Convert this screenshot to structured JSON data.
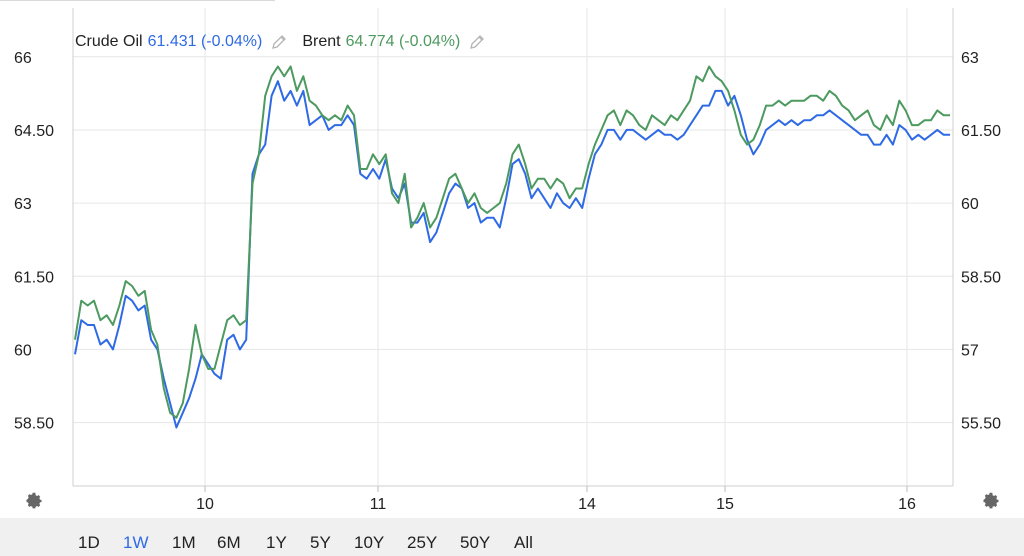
{
  "legend": {
    "crude": {
      "name": "Crude Oil",
      "value": "61.431 (-0.04%)"
    },
    "brent": {
      "name": "Brent",
      "value": "64.774 (-0.04%)"
    }
  },
  "colors": {
    "crude": "#2f6ae5",
    "brent": "#4c9a5f",
    "grid": "#e6e6e6",
    "axis": "#cfcfcf"
  },
  "icons": {
    "left_settings": "gear-icon",
    "right_settings": "gear-icon",
    "edit": "pencil-icon"
  },
  "range_buttons": [
    "1D",
    "1W",
    "1M",
    "6M",
    "1Y",
    "5Y",
    "10Y",
    "25Y",
    "50Y",
    "All"
  ],
  "active_range": "1W",
  "chart_data": {
    "type": "line",
    "x_tick_labels": [
      "10",
      "11",
      "14",
      "15",
      "16"
    ],
    "y_left_ticks": [
      "66",
      "64.50",
      "63",
      "61.50",
      "60",
      "58.50"
    ],
    "y_right_ticks": [
      "63",
      "61.50",
      "60",
      "58.50",
      "57",
      "55.50"
    ],
    "y_left_range": [
      57.2,
      67.0
    ],
    "y_right_range": [
      54.2,
      64.0
    ],
    "grid": true,
    "series": [
      {
        "name": "Crude Oil",
        "axis": "right",
        "values": [
          56.9,
          57.6,
          57.5,
          57.5,
          57.1,
          57.2,
          57.0,
          57.5,
          58.1,
          58.0,
          57.8,
          57.9,
          57.2,
          57.0,
          56.4,
          55.9,
          55.4,
          55.7,
          56.0,
          56.4,
          56.9,
          56.7,
          56.5,
          56.4,
          57.2,
          57.3,
          57.0,
          57.2,
          60.6,
          61.0,
          61.2,
          62.2,
          62.5,
          62.1,
          62.3,
          62.0,
          62.3,
          61.6,
          61.7,
          61.8,
          61.5,
          61.6,
          61.6,
          61.8,
          61.6,
          60.6,
          60.5,
          60.7,
          60.5,
          60.9,
          60.3,
          60.1,
          60.4,
          59.6,
          59.6,
          59.8,
          59.2,
          59.4,
          59.8,
          60.2,
          60.4,
          60.3,
          59.9,
          60.0,
          59.6,
          59.7,
          59.7,
          59.5,
          60.1,
          60.8,
          60.9,
          60.6,
          60.1,
          60.3,
          60.1,
          59.9,
          60.2,
          60.0,
          59.9,
          60.1,
          59.9,
          60.5,
          61.0,
          61.2,
          61.5,
          61.5,
          61.3,
          61.5,
          61.5,
          61.4,
          61.3,
          61.4,
          61.5,
          61.4,
          61.4,
          61.3,
          61.4,
          61.6,
          61.8,
          62.0,
          62.0,
          62.3,
          62.3,
          62.0,
          62.2,
          61.8,
          61.3,
          61.0,
          61.2,
          61.5,
          61.6,
          61.7,
          61.6,
          61.7,
          61.6,
          61.7,
          61.7,
          61.8,
          61.8,
          61.9,
          61.8,
          61.7,
          61.6,
          61.5,
          61.4,
          61.4,
          61.2,
          61.2,
          61.4,
          61.2,
          61.6,
          61.5,
          61.3,
          61.4,
          61.3,
          61.4,
          61.5,
          61.4,
          61.4
        ]
      },
      {
        "name": "Brent",
        "axis": "left",
        "values": [
          60.2,
          61.0,
          60.9,
          61.0,
          60.6,
          60.7,
          60.5,
          60.9,
          61.4,
          61.3,
          61.1,
          61.2,
          60.4,
          60.1,
          59.2,
          58.7,
          58.6,
          58.9,
          59.6,
          60.5,
          59.9,
          59.6,
          59.6,
          60.1,
          60.6,
          60.7,
          60.5,
          60.6,
          63.4,
          64.0,
          65.2,
          65.6,
          65.8,
          65.6,
          65.8,
          65.3,
          65.6,
          65.1,
          65.0,
          64.8,
          64.7,
          64.8,
          64.7,
          65.0,
          64.8,
          63.7,
          63.7,
          64.0,
          63.8,
          64.0,
          63.2,
          63.0,
          63.6,
          62.5,
          62.7,
          63.0,
          62.5,
          62.7,
          63.1,
          63.5,
          63.6,
          63.3,
          63.0,
          63.2,
          62.9,
          62.8,
          62.9,
          63.0,
          63.4,
          64.0,
          64.2,
          63.8,
          63.3,
          63.5,
          63.5,
          63.3,
          63.5,
          63.4,
          63.1,
          63.3,
          63.3,
          63.8,
          64.2,
          64.5,
          64.8,
          64.9,
          64.6,
          64.9,
          64.8,
          64.6,
          64.5,
          64.8,
          64.7,
          64.6,
          64.8,
          64.7,
          64.9,
          65.1,
          65.6,
          65.5,
          65.8,
          65.6,
          65.5,
          65.3,
          64.9,
          64.4,
          64.2,
          64.3,
          64.6,
          65.0,
          65.0,
          65.1,
          65.0,
          65.1,
          65.1,
          65.1,
          65.2,
          65.2,
          65.1,
          65.3,
          65.2,
          65.0,
          64.9,
          64.7,
          64.8,
          64.9,
          64.6,
          64.5,
          64.8,
          64.6,
          65.1,
          64.9,
          64.6,
          64.6,
          64.7,
          64.7,
          64.9,
          64.8,
          64.8
        ]
      }
    ]
  }
}
